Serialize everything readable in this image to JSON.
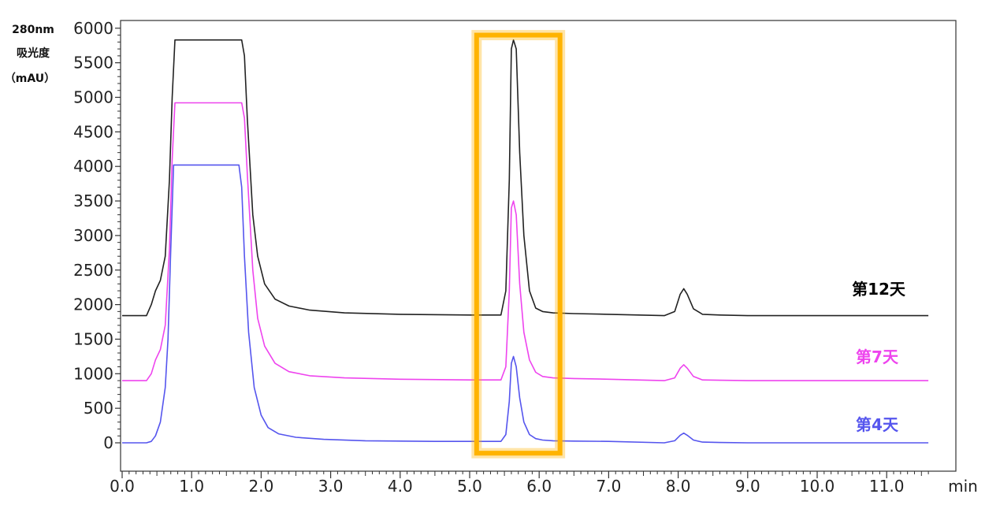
{
  "chart_data": {
    "type": "line",
    "ylabel_lines": [
      "280nm",
      "吸光度",
      "（mAU）"
    ],
    "xunit": "min",
    "xlim": [
      0,
      11.6
    ],
    "ylim": [
      -400,
      6050
    ],
    "xticks": [
      "0.0",
      "1.0",
      "2.0",
      "3.0",
      "4.0",
      "5.0",
      "6.0",
      "7.0",
      "8.0",
      "9.0",
      "10.0",
      "11.0"
    ],
    "yticks": [
      "6000",
      "5500",
      "5000",
      "4500",
      "4000",
      "3500",
      "3000",
      "2500",
      "2000",
      "1500",
      "1000",
      "500",
      "0"
    ],
    "highlight": {
      "x_range": [
        5.1,
        6.3
      ],
      "y_range": [
        -150,
        5900
      ],
      "color": "#FFB300"
    },
    "series": [
      {
        "name": "第12天",
        "color": "#222222",
        "x": [
          0.0,
          0.35,
          0.42,
          0.48,
          0.55,
          0.62,
          0.68,
          0.72,
          0.76,
          0.8,
          1.0,
          1.5,
          1.72,
          1.76,
          1.8,
          1.88,
          1.95,
          2.05,
          2.2,
          2.4,
          2.7,
          3.2,
          4.0,
          5.0,
          5.45,
          5.52,
          5.57,
          5.6,
          5.63,
          5.67,
          5.72,
          5.78,
          5.86,
          5.95,
          6.05,
          6.2,
          6.5,
          7.0,
          7.8,
          7.95,
          8.03,
          8.08,
          8.13,
          8.22,
          8.35,
          8.6,
          9.0,
          10.0,
          11.6
        ],
        "y": [
          1840,
          1840,
          2000,
          2200,
          2350,
          2700,
          3800,
          5000,
          5830,
          5830,
          5830,
          5830,
          5830,
          5600,
          4700,
          3300,
          2700,
          2300,
          2080,
          1980,
          1920,
          1880,
          1860,
          1850,
          1850,
          2200,
          3800,
          5700,
          5830,
          5700,
          4200,
          3000,
          2200,
          1950,
          1900,
          1880,
          1870,
          1860,
          1840,
          1900,
          2150,
          2230,
          2150,
          1940,
          1860,
          1850,
          1840,
          1840,
          1840
        ]
      },
      {
        "name": "第7天",
        "color": "#EE44EE",
        "x": [
          0.0,
          0.35,
          0.42,
          0.48,
          0.55,
          0.62,
          0.68,
          0.72,
          0.76,
          0.8,
          1.0,
          1.5,
          1.72,
          1.76,
          1.8,
          1.88,
          1.95,
          2.05,
          2.2,
          2.4,
          2.7,
          3.2,
          4.0,
          5.0,
          5.45,
          5.52,
          5.57,
          5.6,
          5.63,
          5.67,
          5.72,
          5.78,
          5.86,
          5.95,
          6.05,
          6.2,
          6.5,
          7.0,
          7.8,
          7.95,
          8.03,
          8.08,
          8.13,
          8.22,
          8.35,
          8.6,
          9.0,
          10.0,
          11.6
        ],
        "y": [
          900,
          900,
          1000,
          1200,
          1350,
          1700,
          2800,
          4100,
          4920,
          4920,
          4920,
          4920,
          4920,
          4700,
          3900,
          2500,
          1800,
          1400,
          1150,
          1030,
          970,
          940,
          920,
          910,
          910,
          1100,
          2200,
          3400,
          3500,
          3300,
          2300,
          1600,
          1200,
          1020,
          960,
          940,
          930,
          920,
          900,
          940,
          1080,
          1130,
          1080,
          960,
          910,
          905,
          900,
          900,
          900
        ]
      },
      {
        "name": "第4天",
        "color": "#5555EE",
        "x": [
          0.0,
          0.35,
          0.42,
          0.48,
          0.55,
          0.62,
          0.66,
          0.7,
          0.74,
          0.8,
          1.0,
          1.5,
          1.68,
          1.72,
          1.76,
          1.82,
          1.9,
          2.0,
          2.1,
          2.25,
          2.5,
          2.9,
          3.5,
          4.5,
          5.45,
          5.52,
          5.57,
          5.6,
          5.63,
          5.67,
          5.72,
          5.78,
          5.86,
          5.95,
          6.05,
          6.2,
          6.5,
          7.0,
          7.8,
          7.95,
          8.03,
          8.08,
          8.13,
          8.22,
          8.35,
          8.6,
          9.0,
          10.0,
          11.6
        ],
        "y": [
          0,
          0,
          20,
          100,
          300,
          800,
          1500,
          2800,
          4020,
          4020,
          4020,
          4020,
          4020,
          3700,
          2700,
          1600,
          800,
          400,
          220,
          130,
          80,
          50,
          30,
          20,
          20,
          120,
          600,
          1150,
          1250,
          1100,
          650,
          300,
          120,
          60,
          40,
          30,
          25,
          20,
          0,
          30,
          110,
          140,
          110,
          40,
          10,
          5,
          0,
          0,
          0
        ]
      }
    ]
  }
}
